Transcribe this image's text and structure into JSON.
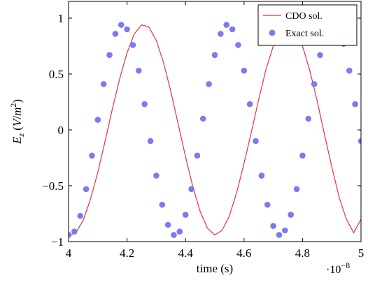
{
  "chart_data": {
    "type": "line",
    "xlabel": "time (s)",
    "ylabel": "E_z (V/m^2)",
    "x_scale_label": "·10^-8",
    "xlim": [
      4.0,
      5.0
    ],
    "ylim": [
      -1.0,
      1.15
    ],
    "x_ticks": [
      4.0,
      4.2,
      4.4,
      4.6,
      4.8,
      5.0
    ],
    "x_tick_labels": [
      "4",
      "4.2",
      "4.4",
      "4.6",
      "4.8",
      "5"
    ],
    "y_ticks": [
      -1.0,
      -0.5,
      0.0,
      0.5,
      1.0
    ],
    "y_tick_labels": [
      "−1",
      "−0.5",
      "0",
      "0.5",
      "1"
    ],
    "grid": false,
    "legend_position": "top-right",
    "series": [
      {
        "name": "CDO sol.",
        "style": "line",
        "color": "#e8303a",
        "x": [
          4.0,
          4.025,
          4.05,
          4.075,
          4.1,
          4.125,
          4.15,
          4.175,
          4.2,
          4.225,
          4.25,
          4.275,
          4.3,
          4.325,
          4.35,
          4.375,
          4.4,
          4.425,
          4.45,
          4.475,
          4.5,
          4.525,
          4.55,
          4.575,
          4.6,
          4.625,
          4.65,
          4.675,
          4.7,
          4.725,
          4.75,
          4.775,
          4.8,
          4.825,
          4.85,
          4.875,
          4.9,
          4.925,
          4.95,
          4.975,
          5.0
        ],
        "y": [
          -0.95,
          -0.92,
          -0.81,
          -0.62,
          -0.38,
          -0.1,
          0.19,
          0.46,
          0.69,
          0.86,
          0.94,
          0.92,
          0.8,
          0.6,
          0.34,
          0.05,
          -0.24,
          -0.51,
          -0.73,
          -0.88,
          -0.94,
          -0.9,
          -0.77,
          -0.56,
          -0.3,
          -0.02,
          0.27,
          0.54,
          0.75,
          0.89,
          0.94,
          0.89,
          0.75,
          0.53,
          0.26,
          -0.04,
          -0.33,
          -0.6,
          -0.8,
          -0.92,
          -0.8
        ]
      },
      {
        "name": "Exact sol.",
        "style": "scatter",
        "color": "#7b7bf0",
        "x": [
          4.0,
          4.02,
          4.04,
          4.06,
          4.08,
          4.1,
          4.12,
          4.14,
          4.16,
          4.18,
          4.2,
          4.22,
          4.24,
          4.26,
          4.28,
          4.3,
          4.32,
          4.34,
          4.36,
          4.38,
          4.4,
          4.42,
          4.44,
          4.46,
          4.48,
          4.5,
          4.52,
          4.54,
          4.56,
          4.58,
          4.6,
          4.62,
          4.64,
          4.66,
          4.68,
          4.7,
          4.72,
          4.74,
          4.76,
          4.78,
          4.8,
          4.82,
          4.84,
          4.86,
          4.88,
          4.9,
          4.92,
          4.94,
          4.96,
          4.98,
          5.0
        ],
        "y": [
          -0.94,
          -0.91,
          -0.77,
          -0.53,
          -0.23,
          0.09,
          0.41,
          0.67,
          0.86,
          0.94,
          0.9,
          0.76,
          0.53,
          0.23,
          -0.1,
          -0.41,
          -0.67,
          -0.85,
          -0.94,
          -0.91,
          -0.76,
          -0.53,
          -0.23,
          0.1,
          0.41,
          0.67,
          0.86,
          0.94,
          0.9,
          0.76,
          0.53,
          0.23,
          -0.1,
          -0.41,
          -0.67,
          -0.86,
          -0.94,
          -0.9,
          -0.76,
          -0.53,
          -0.23,
          0.1,
          0.41,
          0.67,
          0.86,
          0.94,
          0.91,
          0.77,
          0.53,
          0.23,
          -0.1
        ]
      }
    ]
  }
}
